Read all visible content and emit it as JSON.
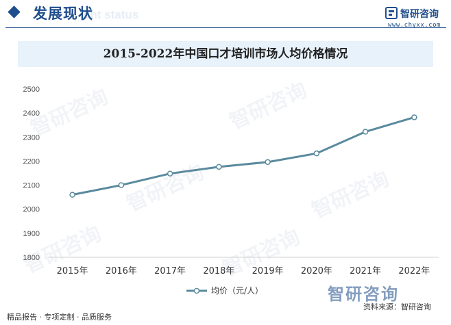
{
  "header": {
    "section_title": "发展现状",
    "section_subtitle": "ent status",
    "logo_name": "智研咨询",
    "logo_url": "www.chyxx.com",
    "brand_color": "#1f4e8c"
  },
  "watermark_text": "智研咨询",
  "footer": {
    "left": "精品报告 · 专项定制 · 品质服务",
    "right": "资料来源：智研咨询",
    "logo": "智研咨询"
  },
  "chart_data": {
    "type": "line",
    "title": "2015-2022年中国口才培训市场人均价格情况",
    "categories": [
      "2015年",
      "2016年",
      "2017年",
      "2018年",
      "2019年",
      "2020年",
      "2021年",
      "2022年"
    ],
    "series": [
      {
        "name": "均价（元/人）",
        "values": [
          2060,
          2100,
          2148,
          2176,
          2196,
          2232,
          2322,
          2382
        ],
        "color": "#5a8a9e"
      }
    ],
    "ylim": [
      1800,
      2500
    ],
    "yticks": [
      1800,
      1900,
      2000,
      2100,
      2200,
      2300,
      2400,
      2500
    ],
    "grid": false,
    "legend_position": "bottom"
  }
}
